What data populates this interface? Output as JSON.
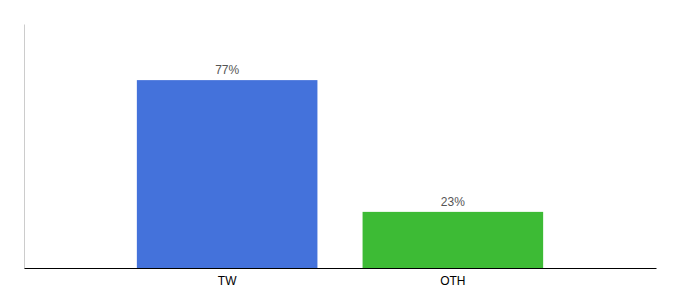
{
  "chart_data": {
    "type": "bar",
    "categories": [
      "TW",
      "OTH"
    ],
    "values": [
      77,
      23
    ],
    "value_labels": [
      "77%",
      "23%"
    ],
    "colors": [
      "#4472db",
      "#3dbb35"
    ],
    "ylim": [
      0,
      100
    ],
    "data_labels": true,
    "tick_labels": "x"
  }
}
